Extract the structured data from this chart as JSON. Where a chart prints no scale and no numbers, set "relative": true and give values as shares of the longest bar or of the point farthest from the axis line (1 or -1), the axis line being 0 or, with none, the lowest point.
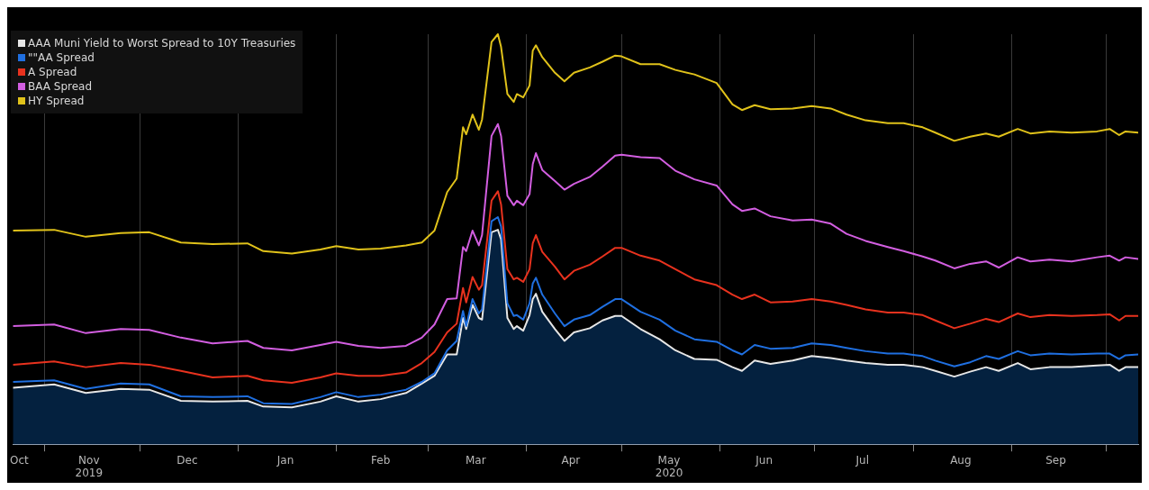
{
  "chart_data": {
    "type": "line",
    "relative": true,
    "legend": "top left",
    "grid": "x",
    "xlim": [
      "2019-10-22",
      "2020-10-11"
    ],
    "xticks": [
      {
        "value": "2019-10-24",
        "label": "Oct"
      },
      {
        "value": "2019-11-01",
        "label": null
      },
      {
        "value": "2019-11-15",
        "label": "Nov\n2019"
      },
      {
        "value": "2019-12-01",
        "label": null
      },
      {
        "value": "2019-12-16",
        "label": "Dec"
      },
      {
        "value": "2020-01-01",
        "label": null
      },
      {
        "value": "2020-01-16",
        "label": "Jan"
      },
      {
        "value": "2020-02-01",
        "label": null
      },
      {
        "value": "2020-02-15",
        "label": "Feb"
      },
      {
        "value": "2020-03-01",
        "label": null
      },
      {
        "value": "2020-03-16",
        "label": "Mar"
      },
      {
        "value": "2020-04-01",
        "label": null
      },
      {
        "value": "2020-04-15",
        "label": "Apr"
      },
      {
        "value": "2020-05-01",
        "label": null
      },
      {
        "value": "2020-05-16",
        "label": "May\n2020"
      },
      {
        "value": "2020-06-01",
        "label": null
      },
      {
        "value": "2020-06-15",
        "label": "Jun"
      },
      {
        "value": "2020-07-01",
        "label": null
      },
      {
        "value": "2020-07-16",
        "label": "Jul"
      },
      {
        "value": "2020-08-01",
        "label": null
      },
      {
        "value": "2020-08-16",
        "label": "Aug"
      },
      {
        "value": "2020-09-01",
        "label": null
      },
      {
        "value": "2020-09-15",
        "label": "Sep"
      },
      {
        "value": "2020-10-01",
        "label": null
      }
    ],
    "x": [
      "2019-10-22",
      "2019-11-04",
      "2019-11-14",
      "2019-11-25",
      "2019-12-04",
      "2019-12-14",
      "2019-12-24",
      "2020-01-04",
      "2020-01-09",
      "2020-01-18",
      "2020-01-27",
      "2020-02-01",
      "2020-02-08",
      "2020-02-15",
      "2020-02-23",
      "2020-02-28",
      "2020-03-03",
      "2020-03-07",
      "2020-03-10",
      "2020-03-12",
      "2020-03-13",
      "2020-03-15",
      "2020-03-17",
      "2020-03-18",
      "2020-03-21",
      "2020-03-23",
      "2020-03-24",
      "2020-03-26",
      "2020-03-28",
      "2020-03-29",
      "2020-03-31",
      "2020-04-02",
      "2020-04-03",
      "2020-04-04",
      "2020-04-06",
      "2020-04-10",
      "2020-04-13",
      "2020-04-16",
      "2020-04-21",
      "2020-04-25",
      "2020-04-29",
      "2020-05-01",
      "2020-05-07",
      "2020-05-13",
      "2020-05-18",
      "2020-05-24",
      "2020-05-31",
      "2020-06-05",
      "2020-06-08",
      "2020-06-12",
      "2020-06-17",
      "2020-06-24",
      "2020-06-30",
      "2020-07-06",
      "2020-07-11",
      "2020-07-17",
      "2020-07-24",
      "2020-07-29",
      "2020-08-04",
      "2020-08-08",
      "2020-08-14",
      "2020-08-19",
      "2020-08-24",
      "2020-08-28",
      "2020-09-03",
      "2020-09-07",
      "2020-09-13",
      "2020-09-20",
      "2020-09-28",
      "2020-10-02",
      "2020-10-05",
      "2020-10-07",
      "2020-10-11"
    ],
    "series": [
      {
        "name": "AAA Muni Yield to Worst Spread to 10Y Treasuries",
        "type": "area",
        "color": "#e6e6e6",
        "values": [
          0.138,
          0.146,
          0.125,
          0.135,
          0.133,
          0.106,
          0.104,
          0.106,
          0.092,
          0.09,
          0.104,
          0.117,
          0.104,
          0.11,
          0.125,
          0.148,
          0.167,
          0.219,
          0.219,
          0.308,
          0.281,
          0.34,
          0.308,
          0.304,
          0.517,
          0.523,
          0.5,
          0.308,
          0.281,
          0.288,
          0.277,
          0.315,
          0.354,
          0.367,
          0.323,
          0.281,
          0.252,
          0.273,
          0.283,
          0.302,
          0.313,
          0.313,
          0.281,
          0.256,
          0.229,
          0.208,
          0.206,
          0.188,
          0.179,
          0.204,
          0.196,
          0.204,
          0.215,
          0.21,
          0.204,
          0.198,
          0.194,
          0.194,
          0.188,
          0.179,
          0.165,
          0.177,
          0.188,
          0.179,
          0.198,
          0.183,
          0.188,
          0.188,
          0.192,
          0.194,
          0.179,
          0.188,
          0.188
        ]
      },
      {
        "name": "\"\"AA Spread",
        "color": "#1f6fe0",
        "values": [
          0.152,
          0.156,
          0.135,
          0.148,
          0.146,
          0.117,
          0.115,
          0.117,
          0.1,
          0.098,
          0.115,
          0.127,
          0.115,
          0.121,
          0.133,
          0.152,
          0.173,
          0.229,
          0.252,
          0.325,
          0.288,
          0.354,
          0.319,
          0.329,
          0.544,
          0.554,
          0.531,
          0.344,
          0.313,
          0.315,
          0.304,
          0.344,
          0.392,
          0.406,
          0.365,
          0.319,
          0.288,
          0.304,
          0.315,
          0.335,
          0.354,
          0.354,
          0.323,
          0.304,
          0.277,
          0.256,
          0.25,
          0.229,
          0.219,
          0.242,
          0.233,
          0.235,
          0.246,
          0.242,
          0.235,
          0.227,
          0.221,
          0.221,
          0.215,
          0.204,
          0.19,
          0.2,
          0.215,
          0.208,
          0.227,
          0.217,
          0.221,
          0.219,
          0.221,
          0.221,
          0.208,
          0.217,
          0.219
        ]
      },
      {
        "name": "A Spread",
        "color": "#e8321e",
        "values": [
          0.194,
          0.202,
          0.188,
          0.198,
          0.194,
          0.179,
          0.163,
          0.167,
          0.156,
          0.15,
          0.163,
          0.173,
          0.167,
          0.167,
          0.175,
          0.198,
          0.225,
          0.273,
          0.294,
          0.381,
          0.346,
          0.408,
          0.377,
          0.388,
          0.594,
          0.617,
          0.585,
          0.427,
          0.402,
          0.406,
          0.396,
          0.427,
          0.49,
          0.51,
          0.469,
          0.433,
          0.402,
          0.423,
          0.438,
          0.458,
          0.479,
          0.479,
          0.46,
          0.448,
          0.427,
          0.402,
          0.388,
          0.365,
          0.354,
          0.365,
          0.346,
          0.348,
          0.354,
          0.348,
          0.34,
          0.329,
          0.321,
          0.321,
          0.315,
          0.302,
          0.283,
          0.294,
          0.306,
          0.298,
          0.319,
          0.31,
          0.315,
          0.313,
          0.315,
          0.317,
          0.302,
          0.313,
          0.313
        ]
      },
      {
        "name": "BAA Spread",
        "color": "#d25ee0",
        "values": [
          0.288,
          0.292,
          0.271,
          0.281,
          0.279,
          0.26,
          0.246,
          0.252,
          0.235,
          0.229,
          0.242,
          0.25,
          0.24,
          0.235,
          0.24,
          0.26,
          0.292,
          0.354,
          0.356,
          0.481,
          0.471,
          0.521,
          0.485,
          0.51,
          0.752,
          0.781,
          0.752,
          0.606,
          0.583,
          0.594,
          0.583,
          0.61,
          0.683,
          0.71,
          0.669,
          0.642,
          0.621,
          0.635,
          0.652,
          0.677,
          0.704,
          0.706,
          0.7,
          0.698,
          0.667,
          0.646,
          0.631,
          0.585,
          0.569,
          0.575,
          0.556,
          0.546,
          0.548,
          0.538,
          0.513,
          0.496,
          0.481,
          0.471,
          0.458,
          0.448,
          0.429,
          0.44,
          0.446,
          0.431,
          0.456,
          0.446,
          0.45,
          0.446,
          0.456,
          0.46,
          0.448,
          0.456,
          0.452
        ]
      },
      {
        "name": "HY Spread",
        "color": "#e0c21a",
        "values": [
          0.521,
          0.523,
          0.506,
          0.515,
          0.517,
          0.492,
          0.488,
          0.49,
          0.471,
          0.465,
          0.475,
          0.483,
          0.475,
          0.477,
          0.485,
          0.492,
          0.521,
          0.615,
          0.648,
          0.773,
          0.756,
          0.804,
          0.767,
          0.792,
          0.981,
          1.0,
          0.969,
          0.854,
          0.835,
          0.854,
          0.846,
          0.875,
          0.96,
          0.973,
          0.944,
          0.906,
          0.885,
          0.906,
          0.919,
          0.933,
          0.948,
          0.946,
          0.927,
          0.927,
          0.913,
          0.902,
          0.881,
          0.829,
          0.815,
          0.827,
          0.817,
          0.819,
          0.825,
          0.819,
          0.804,
          0.79,
          0.783,
          0.783,
          0.773,
          0.76,
          0.74,
          0.75,
          0.758,
          0.75,
          0.769,
          0.758,
          0.763,
          0.76,
          0.763,
          0.769,
          0.754,
          0.763,
          0.76
        ]
      }
    ]
  }
}
